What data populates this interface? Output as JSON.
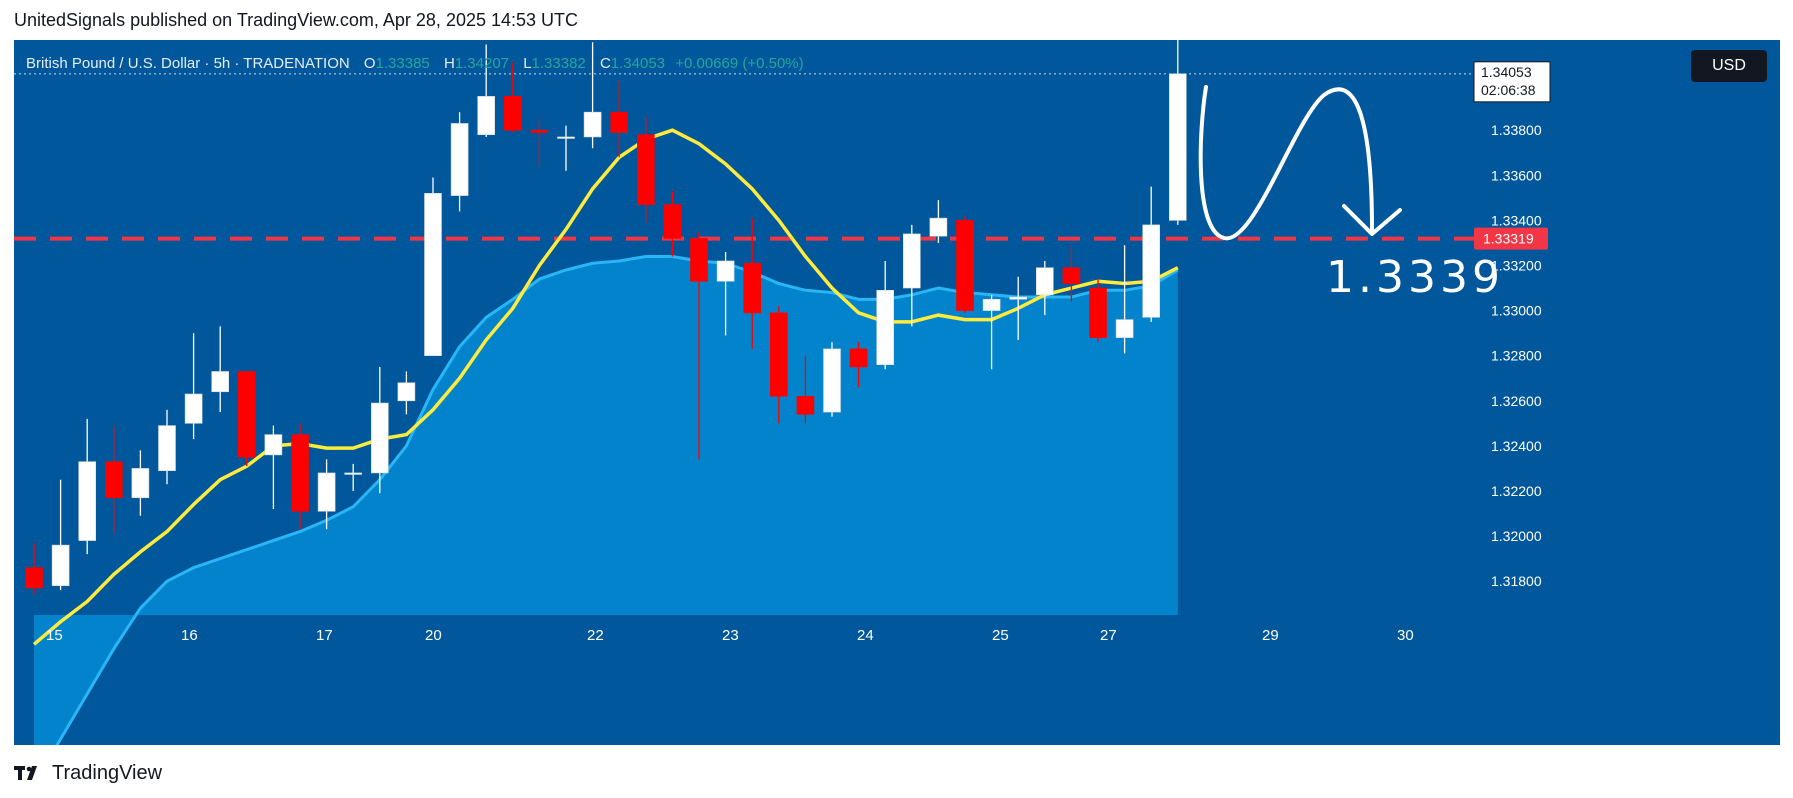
{
  "header": {
    "publish_line": "UnitedSignals published on TradingView.com, Apr 28, 2025 14:53 UTC"
  },
  "legend": {
    "symbol": "British Pound / U.S. Dollar · 5h · TRADENATION",
    "o_label": "O",
    "o_value": "1.33385",
    "h_label": "H",
    "h_value": "1.34207",
    "l_label": "L",
    "l_value": "1.33382",
    "c_label": "C",
    "c_value": "1.34053",
    "change": "+0.00669 (+0.50%)"
  },
  "currency_button": "USD",
  "footer": {
    "brand": "TradingView"
  },
  "colors": {
    "background": "#01579b",
    "bull_candle": "#ffffff",
    "bear_candle": "#ff0000",
    "ma_fast": "#ffeb3b",
    "ma_slow_area": "#0288d1",
    "dashed_level": "#f23645",
    "axis_text": "#ffffff"
  },
  "chart_data": {
    "type": "candlestick",
    "ylim": [
      1.3165,
      1.342
    ],
    "y_ticks": [
      "1.33800",
      "1.33600",
      "1.33400",
      "1.33200",
      "1.33000",
      "1.32800",
      "1.32600",
      "1.32400",
      "1.32200",
      "1.32000",
      "1.31800"
    ],
    "x_ticks": [
      "15",
      "16",
      "17",
      "20",
      "22",
      "23",
      "24",
      "25",
      "27",
      "29",
      "30"
    ],
    "last_price": {
      "value": "1.34053",
      "countdown": "02:06:38"
    },
    "level": {
      "value": "1.33319",
      "annotation": "1.3339"
    },
    "candles": [
      {
        "o": 1.3186,
        "h": 1.3197,
        "l": 1.3174,
        "c": 1.3177
      },
      {
        "o": 1.3178,
        "h": 1.3225,
        "l": 1.3176,
        "c": 1.3196
      },
      {
        "o": 1.3198,
        "h": 1.3252,
        "l": 1.3192,
        "c": 1.3233
      },
      {
        "o": 1.3233,
        "h": 1.3249,
        "l": 1.3201,
        "c": 1.3217
      },
      {
        "o": 1.3217,
        "h": 1.3238,
        "l": 1.3209,
        "c": 1.323
      },
      {
        "o": 1.3229,
        "h": 1.3256,
        "l": 1.3223,
        "c": 1.3249
      },
      {
        "o": 1.325,
        "h": 1.329,
        "l": 1.3243,
        "c": 1.3263
      },
      {
        "o": 1.3264,
        "h": 1.3293,
        "l": 1.3255,
        "c": 1.3273
      },
      {
        "o": 1.3273,
        "h": 1.3273,
        "l": 1.3231,
        "c": 1.3235
      },
      {
        "o": 1.3236,
        "h": 1.3249,
        "l": 1.3212,
        "c": 1.3245
      },
      {
        "o": 1.3245,
        "h": 1.325,
        "l": 1.3203,
        "c": 1.3211
      },
      {
        "o": 1.3211,
        "h": 1.3234,
        "l": 1.3203,
        "c": 1.3228
      },
      {
        "o": 1.3228,
        "h": 1.3232,
        "l": 1.322,
        "c": 1.3228
      },
      {
        "o": 1.3228,
        "h": 1.3275,
        "l": 1.3219,
        "c": 1.3259
      },
      {
        "o": 1.326,
        "h": 1.3273,
        "l": 1.3254,
        "c": 1.3268
      },
      {
        "o": 1.328,
        "h": 1.3359,
        "l": 1.328,
        "c": 1.3352
      },
      {
        "o": 1.3351,
        "h": 1.3388,
        "l": 1.3344,
        "c": 1.3383
      },
      {
        "o": 1.3378,
        "h": 1.3418,
        "l": 1.3377,
        "c": 1.3395
      },
      {
        "o": 1.3395,
        "h": 1.341,
        "l": 1.3379,
        "c": 1.338
      },
      {
        "o": 1.338,
        "h": 1.3385,
        "l": 1.3364,
        "c": 1.3379
      },
      {
        "o": 1.3377,
        "h": 1.3382,
        "l": 1.3362,
        "c": 1.3377
      },
      {
        "o": 1.3377,
        "h": 1.3419,
        "l": 1.3372,
        "c": 1.3388
      },
      {
        "o": 1.3388,
        "h": 1.3402,
        "l": 1.3368,
        "c": 1.3379
      },
      {
        "o": 1.3378,
        "h": 1.3386,
        "l": 1.3339,
        "c": 1.3347
      },
      {
        "o": 1.3347,
        "h": 1.3353,
        "l": 1.3324,
        "c": 1.3332
      },
      {
        "o": 1.3332,
        "h": 1.3335,
        "l": 1.3234,
        "c": 1.3313
      },
      {
        "o": 1.3313,
        "h": 1.3326,
        "l": 1.3289,
        "c": 1.3322
      },
      {
        "o": 1.3321,
        "h": 1.3341,
        "l": 1.3283,
        "c": 1.3299
      },
      {
        "o": 1.3299,
        "h": 1.3302,
        "l": 1.325,
        "c": 1.3262
      },
      {
        "o": 1.3262,
        "h": 1.328,
        "l": 1.325,
        "c": 1.3254
      },
      {
        "o": 1.3255,
        "h": 1.3286,
        "l": 1.3253,
        "c": 1.3283
      },
      {
        "o": 1.3283,
        "h": 1.3286,
        "l": 1.3266,
        "c": 1.3275
      },
      {
        "o": 1.3276,
        "h": 1.3322,
        "l": 1.3274,
        "c": 1.3309
      },
      {
        "o": 1.331,
        "h": 1.3338,
        "l": 1.3293,
        "c": 1.3334
      },
      {
        "o": 1.3333,
        "h": 1.3349,
        "l": 1.333,
        "c": 1.3341
      },
      {
        "o": 1.334,
        "h": 1.3342,
        "l": 1.3299,
        "c": 1.33
      },
      {
        "o": 1.33,
        "h": 1.3307,
        "l": 1.3274,
        "c": 1.3305
      },
      {
        "o": 1.3305,
        "h": 1.3315,
        "l": 1.3287,
        "c": 1.3306
      },
      {
        "o": 1.3307,
        "h": 1.3322,
        "l": 1.3298,
        "c": 1.3319
      },
      {
        "o": 1.3319,
        "h": 1.3329,
        "l": 1.3304,
        "c": 1.3312
      },
      {
        "o": 1.331,
        "h": 1.3314,
        "l": 1.3286,
        "c": 1.3288
      },
      {
        "o": 1.3288,
        "h": 1.3329,
        "l": 1.3281,
        "c": 1.3296
      },
      {
        "o": 1.3297,
        "h": 1.3355,
        "l": 1.3295,
        "c": 1.3338
      },
      {
        "o": 1.334,
        "h": 1.3421,
        "l": 1.3338,
        "c": 1.3405
      }
    ],
    "ma_fast": [
      1.3152,
      1.3162,
      1.3171,
      1.3183,
      1.3193,
      1.3202,
      1.3214,
      1.3225,
      1.3231,
      1.324,
      1.3241,
      1.3239,
      1.3239,
      1.3243,
      1.3245,
      1.3256,
      1.327,
      1.3287,
      1.3301,
      1.332,
      1.3336,
      1.3354,
      1.3368,
      1.3376,
      1.338,
      1.3374,
      1.3365,
      1.3354,
      1.334,
      1.3324,
      1.331,
      1.3299,
      1.3295,
      1.3295,
      1.3298,
      1.3296,
      1.3296,
      1.3301,
      1.3307,
      1.331,
      1.3313,
      1.3312,
      1.3313,
      1.3319
    ],
    "ma_slow": [
      1.309,
      1.311,
      1.313,
      1.315,
      1.3168,
      1.318,
      1.3186,
      1.319,
      1.3194,
      1.3198,
      1.3202,
      1.3207,
      1.3213,
      1.3225,
      1.324,
      1.3265,
      1.3284,
      1.3297,
      1.3305,
      1.3314,
      1.3318,
      1.3321,
      1.3322,
      1.3324,
      1.3324,
      1.3322,
      1.3321,
      1.3317,
      1.3312,
      1.3309,
      1.3308,
      1.3305,
      1.3305,
      1.3307,
      1.331,
      1.3308,
      1.3307,
      1.3306,
      1.3306,
      1.3306,
      1.3309,
      1.3309,
      1.3311,
      1.3318
    ]
  }
}
